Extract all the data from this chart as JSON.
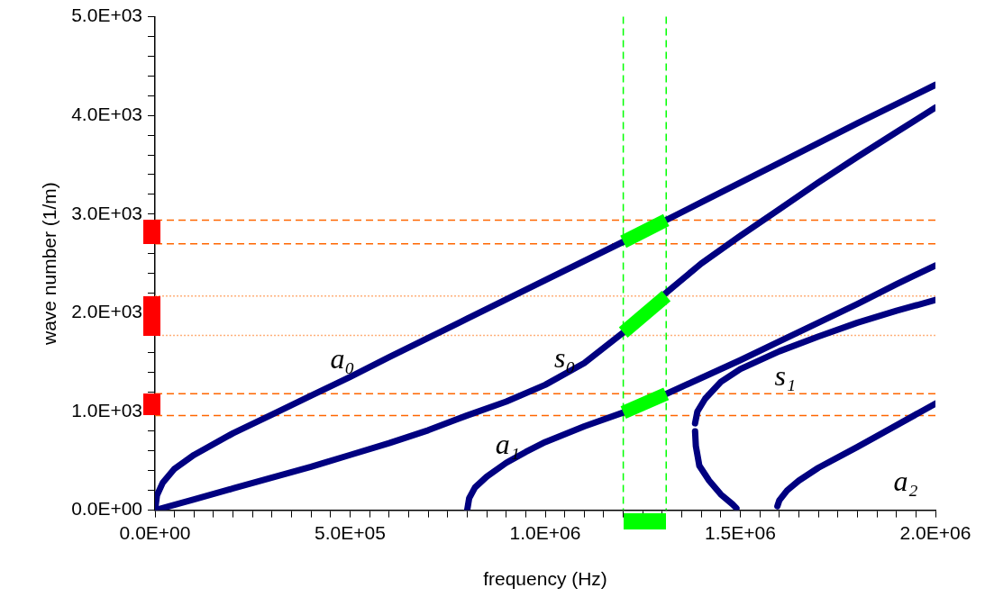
{
  "chart_data": {
    "type": "line",
    "xlabel": "frequency (Hz)",
    "ylabel": "wave number (1/m)",
    "xlim": [
      0,
      2000000
    ],
    "ylim": [
      0,
      5000
    ],
    "xticks": [
      {
        "value": 0,
        "label": "0.0E+00"
      },
      {
        "value": 50000,
        "label": null
      },
      {
        "value": 100000,
        "label": null
      },
      {
        "value": 150000,
        "label": null
      },
      {
        "value": 200000,
        "label": null
      },
      {
        "value": 250000,
        "label": null
      },
      {
        "value": 300000,
        "label": null
      },
      {
        "value": 350000,
        "label": null
      },
      {
        "value": 400000,
        "label": null
      },
      {
        "value": 450000,
        "label": null
      },
      {
        "value": 500000,
        "label": "5.0E+05"
      },
      {
        "value": 550000,
        "label": null
      },
      {
        "value": 600000,
        "label": null
      },
      {
        "value": 650000,
        "label": null
      },
      {
        "value": 700000,
        "label": null
      },
      {
        "value": 750000,
        "label": null
      },
      {
        "value": 800000,
        "label": null
      },
      {
        "value": 850000,
        "label": null
      },
      {
        "value": 900000,
        "label": null
      },
      {
        "value": 950000,
        "label": null
      },
      {
        "value": 1000000,
        "label": "1.0E+06"
      },
      {
        "value": 1050000,
        "label": null
      },
      {
        "value": 1100000,
        "label": null
      },
      {
        "value": 1150000,
        "label": null
      },
      {
        "value": 1200000,
        "label": null
      },
      {
        "value": 1250000,
        "label": null
      },
      {
        "value": 1300000,
        "label": null
      },
      {
        "value": 1350000,
        "label": null
      },
      {
        "value": 1400000,
        "label": null
      },
      {
        "value": 1450000,
        "label": null
      },
      {
        "value": 1500000,
        "label": "1.5E+06"
      },
      {
        "value": 1550000,
        "label": null
      },
      {
        "value": 1600000,
        "label": null
      },
      {
        "value": 1650000,
        "label": null
      },
      {
        "value": 1700000,
        "label": null
      },
      {
        "value": 1750000,
        "label": null
      },
      {
        "value": 1800000,
        "label": null
      },
      {
        "value": 1850000,
        "label": null
      },
      {
        "value": 1900000,
        "label": null
      },
      {
        "value": 1950000,
        "label": null
      },
      {
        "value": 2000000,
        "label": "2.0E+06"
      }
    ],
    "yticks": [
      {
        "value": 0,
        "label": "0.0E+00"
      },
      {
        "value": 200,
        "label": null
      },
      {
        "value": 400,
        "label": null
      },
      {
        "value": 600,
        "label": null
      },
      {
        "value": 800,
        "label": null
      },
      {
        "value": 1000,
        "label": "1.0E+03"
      },
      {
        "value": 1200,
        "label": null
      },
      {
        "value": 1400,
        "label": null
      },
      {
        "value": 1600,
        "label": null
      },
      {
        "value": 1800,
        "label": null
      },
      {
        "value": 2000,
        "label": "2.0E+03"
      },
      {
        "value": 2200,
        "label": null
      },
      {
        "value": 2400,
        "label": null
      },
      {
        "value": 2600,
        "label": null
      },
      {
        "value": 2800,
        "label": null
      },
      {
        "value": 3000,
        "label": "3.0E+03"
      },
      {
        "value": 3200,
        "label": null
      },
      {
        "value": 3400,
        "label": null
      },
      {
        "value": 3600,
        "label": null
      },
      {
        "value": 3800,
        "label": null
      },
      {
        "value": 4000,
        "label": "4.0E+03"
      },
      {
        "value": 4200,
        "label": null
      },
      {
        "value": 4400,
        "label": null
      },
      {
        "value": 4600,
        "label": null
      },
      {
        "value": 4800,
        "label": null
      },
      {
        "value": 5000,
        "label": "5.0E+03"
      }
    ],
    "grid": false,
    "legend": false,
    "marker": "none",
    "line_style": "solid",
    "series": [
      {
        "name": "a₀",
        "color": "#000080",
        "x": [
          0,
          5000,
          20000,
          50000,
          100000,
          200000,
          300000,
          400000,
          500000,
          600000,
          800000,
          1000000,
          1200000,
          1400000,
          1600000,
          1800000,
          2000000
        ],
        "values": [
          0,
          150,
          280,
          420,
          560,
          780,
          970,
          1160,
          1350,
          1550,
          1940,
          2330,
          2720,
          3120,
          3520,
          3920,
          4310
        ]
      },
      {
        "name": "s₀",
        "color": "#000080",
        "x": [
          0,
          100000,
          200000,
          300000,
          400000,
          500000,
          600000,
          700000,
          800000,
          900000,
          1000000,
          1100000,
          1200000,
          1300000,
          1400000,
          1500000,
          1600000,
          1700000,
          1800000,
          1900000,
          2000000
        ],
        "values": [
          0,
          110,
          220,
          330,
          440,
          560,
          680,
          810,
          960,
          1100,
          1270,
          1490,
          1800,
          2170,
          2500,
          2780,
          3050,
          3320,
          3580,
          3830,
          4080
        ]
      },
      {
        "name": "a₁",
        "color": "#000080",
        "x": [
          800000,
          805000,
          820000,
          850000,
          900000,
          950000,
          1000000,
          1100000,
          1200000,
          1300000,
          1400000,
          1500000,
          1600000,
          1700000,
          1800000,
          1900000,
          2000000
        ],
        "values": [
          0,
          120,
          230,
          340,
          480,
          590,
          690,
          850,
          990,
          1160,
          1340,
          1520,
          1710,
          1900,
          2090,
          2290,
          2480
        ]
      },
      {
        "name": "s₁",
        "color": "#000080",
        "x": [
          1384000,
          1390000,
          1410000,
          1450000,
          1500000,
          1600000,
          1700000,
          1800000,
          1900000,
          2000000
        ],
        "values": [
          880,
          1000,
          1130,
          1300,
          1430,
          1610,
          1760,
          1900,
          2020,
          2130
        ]
      },
      {
        "color": "#000080",
        "x": [
          1490000,
          1480000,
          1450000,
          1420000,
          1395000,
          1386000,
          1384000
        ],
        "values": [
          20,
          60,
          160,
          300,
          450,
          650,
          800
        ]
      },
      {
        "name": "a₂",
        "color": "#000080",
        "x": [
          1595000,
          1600000,
          1620000,
          1650000,
          1700000,
          1800000,
          1900000,
          2000000
        ],
        "values": [
          40,
          100,
          200,
          300,
          430,
          640,
          860,
          1080
        ]
      },
      {
        "color": "#00ff00",
        "x": [
          1200000,
          1310000
        ],
        "values": [
          2720,
          2940
        ]
      },
      {
        "color": "#00ff00",
        "x": [
          1200000,
          1310000
        ],
        "values": [
          1800,
          2170
        ]
      },
      {
        "color": "#00ff00",
        "x": [
          1200000,
          1310000
        ],
        "values": [
          990,
          1180
        ]
      }
    ],
    "ref_lines": [
      {
        "axis": "y",
        "value": 2940,
        "color": "#ff6600",
        "line_style": "dashed"
      },
      {
        "axis": "y",
        "value": 2700,
        "color": "#ff6600",
        "line_style": "dashed"
      },
      {
        "axis": "y",
        "value": 2170,
        "color": "#ffb07a",
        "line_style": "dotted"
      },
      {
        "axis": "y",
        "value": 1770,
        "color": "#ffb07a",
        "line_style": "dotted"
      },
      {
        "axis": "y",
        "value": 1180,
        "color": "#ff6600",
        "line_style": "dashed"
      },
      {
        "axis": "y",
        "value": 960,
        "color": "#ff6600",
        "line_style": "dashed"
      },
      {
        "axis": "x",
        "value": 1200000,
        "color": "#00ff00",
        "line_style": "dashed"
      },
      {
        "axis": "x",
        "value": 1310000,
        "color": "#00ff00",
        "line_style": "dashed"
      }
    ]
  }
}
